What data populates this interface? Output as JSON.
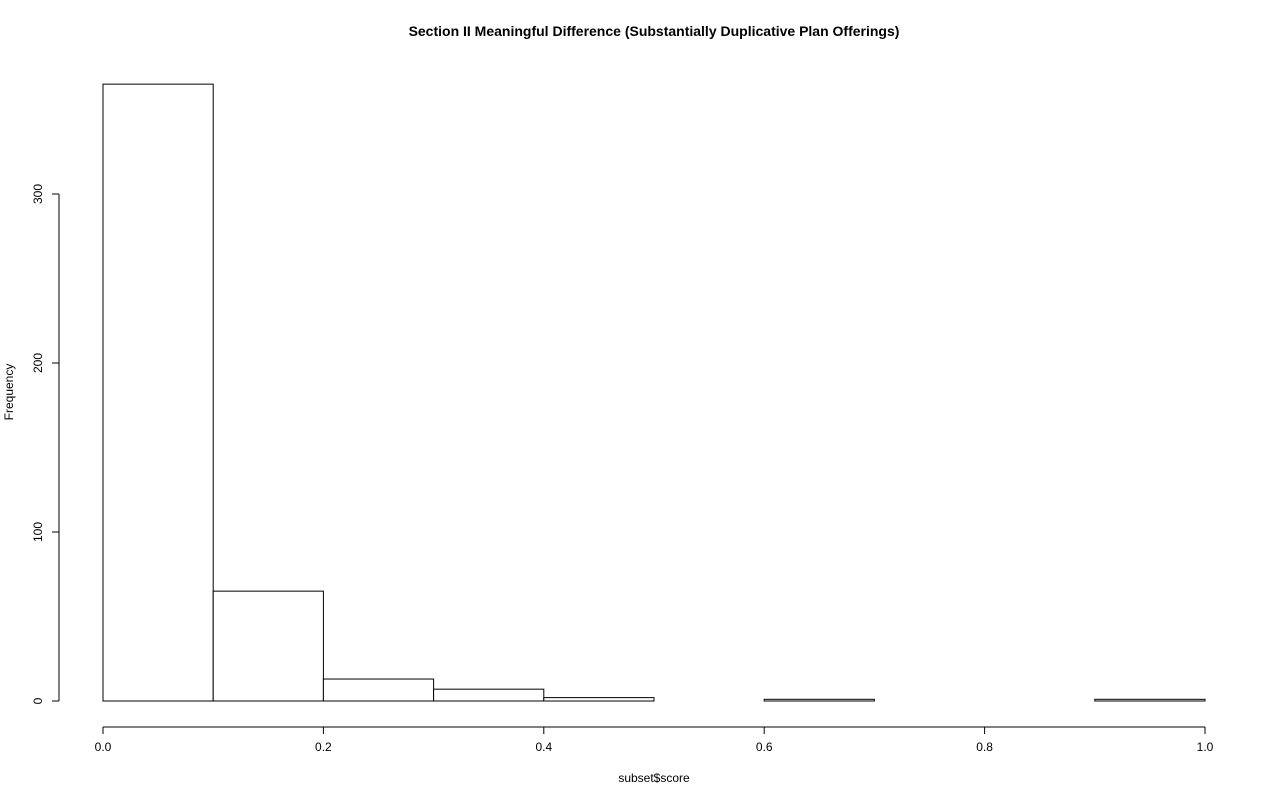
{
  "chart_data": {
    "type": "bar",
    "title": "Section II Meaningful Difference (Substantially Duplicative Plan Offerings)",
    "xlabel": "subset$score",
    "ylabel": "Frequency",
    "bins": [
      {
        "x0": 0.0,
        "x1": 0.1,
        "count": 365
      },
      {
        "x0": 0.1,
        "x1": 0.2,
        "count": 65
      },
      {
        "x0": 0.2,
        "x1": 0.3,
        "count": 13
      },
      {
        "x0": 0.3,
        "x1": 0.4,
        "count": 7
      },
      {
        "x0": 0.4,
        "x1": 0.5,
        "count": 2
      },
      {
        "x0": 0.5,
        "x1": 0.6,
        "count": 0
      },
      {
        "x0": 0.6,
        "x1": 0.7,
        "count": 1
      },
      {
        "x0": 0.7,
        "x1": 0.8,
        "count": 0
      },
      {
        "x0": 0.8,
        "x1": 0.9,
        "count": 0
      },
      {
        "x0": 0.9,
        "x1": 1.0,
        "count": 1
      }
    ],
    "xlim": [
      0,
      1
    ],
    "ylim": [
      0,
      365
    ],
    "x_ticks": [
      "0.0",
      "0.2",
      "0.4",
      "0.6",
      "0.8",
      "1.0"
    ],
    "y_ticks": [
      "0",
      "100",
      "200",
      "300"
    ],
    "grid": false,
    "legend": "none"
  }
}
